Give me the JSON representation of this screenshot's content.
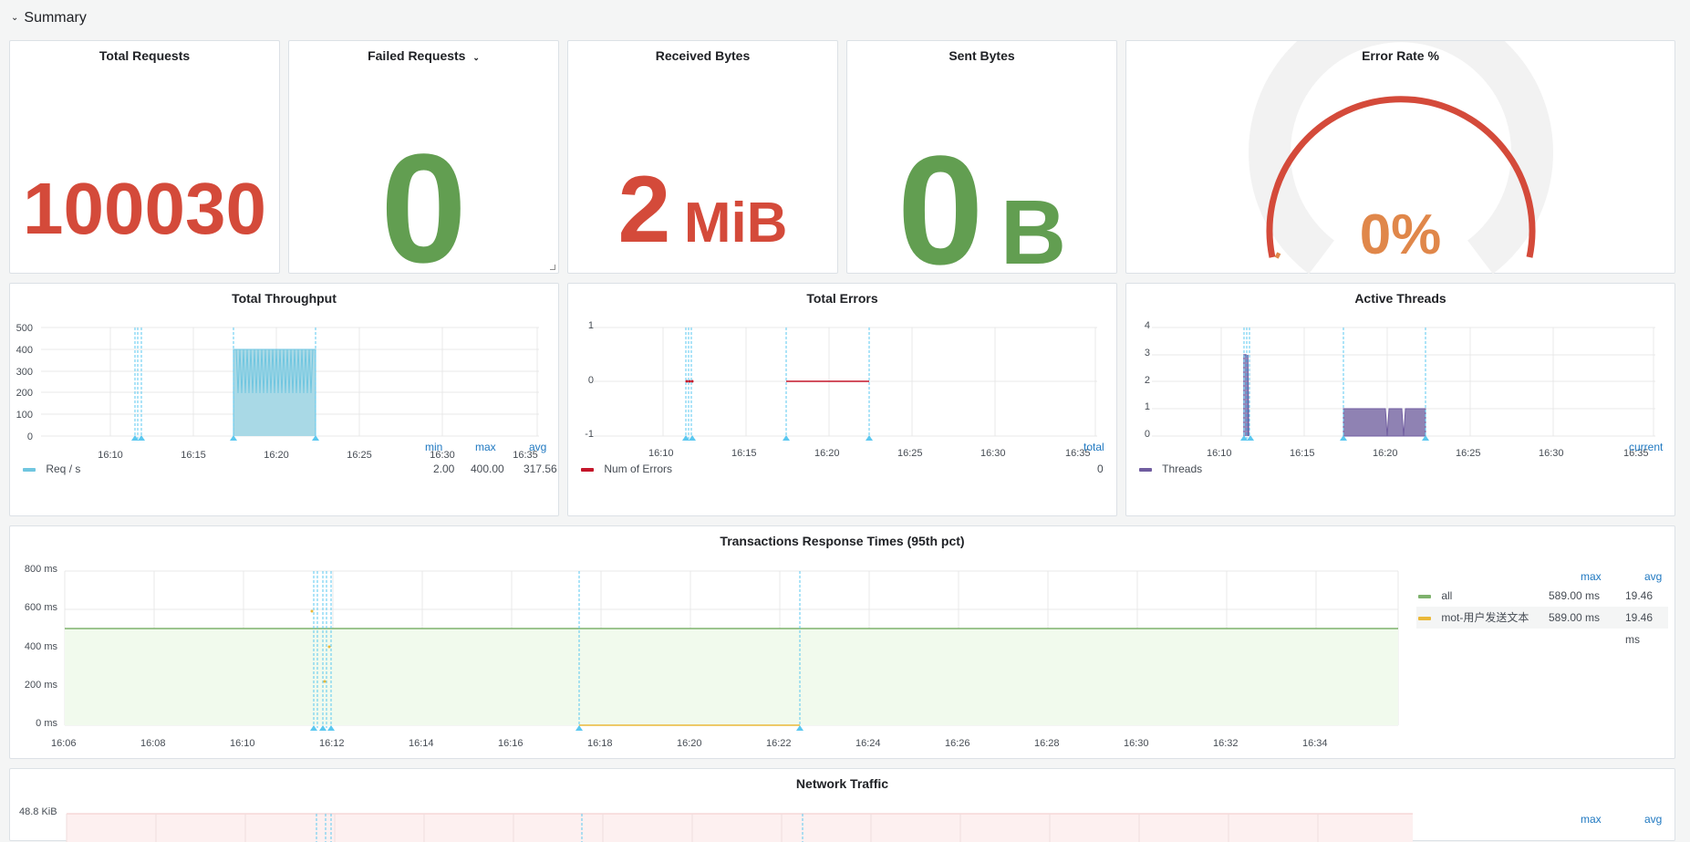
{
  "row": {
    "title": "Summary",
    "chevron_icon": "chevron-down-icon"
  },
  "stats": {
    "total_requests": {
      "title": "Total Requests",
      "value": "100030",
      "color": "#d44a3a"
    },
    "failed_requests": {
      "title": "Failed Requests",
      "value": "0",
      "color": "#629e51",
      "menu_icon": "chevron-down-icon"
    },
    "received_bytes": {
      "title": "Received Bytes",
      "value": "2",
      "unit": "MiB",
      "color": "#d44a3a"
    },
    "sent_bytes": {
      "title": "Sent Bytes",
      "value": "0",
      "unit": "B",
      "color": "#629e51"
    },
    "error_rate": {
      "title": "Error Rate %",
      "value": "0%",
      "gauge_fraction": 0,
      "color": "#e0874a",
      "arc_color": "#d44a3a"
    }
  },
  "throughput": {
    "title": "Total Throughput",
    "y_ticks": [
      "500",
      "400",
      "300",
      "200",
      "100",
      "0"
    ],
    "x_ticks": [
      "16:10",
      "16:15",
      "16:20",
      "16:25",
      "16:30",
      "16:35"
    ],
    "legend_headers": [
      "min",
      "max",
      "avg"
    ],
    "legend": [
      {
        "name": "Req / s",
        "min": "2.00",
        "max": "400.00",
        "avg": "317.56",
        "color": "#70c6e0"
      }
    ]
  },
  "errors": {
    "title": "Total Errors",
    "y_ticks": [
      "1",
      "0",
      "-1"
    ],
    "x_ticks": [
      "16:10",
      "16:15",
      "16:20",
      "16:25",
      "16:30",
      "16:35"
    ],
    "legend_headers": [
      "total"
    ],
    "legend": [
      {
        "name": "Num of Errors",
        "total": "0",
        "color": "#c4162a"
      }
    ]
  },
  "threads": {
    "title": "Active Threads",
    "y_ticks": [
      "4",
      "3",
      "2",
      "1",
      "0"
    ],
    "x_ticks": [
      "16:10",
      "16:15",
      "16:20",
      "16:25",
      "16:30",
      "16:35"
    ],
    "legend_headers": [
      "current"
    ],
    "legend": [
      {
        "name": "Threads",
        "color": "#705da0"
      }
    ]
  },
  "response_times": {
    "title": "Transactions Response Times (95th pct)",
    "y_ticks": [
      "800 ms",
      "600 ms",
      "400 ms",
      "200 ms",
      "0 ms"
    ],
    "x_ticks": [
      "16:06",
      "16:08",
      "16:10",
      "16:12",
      "16:14",
      "16:16",
      "16:18",
      "16:20",
      "16:22",
      "16:24",
      "16:26",
      "16:28",
      "16:30",
      "16:32",
      "16:34"
    ],
    "legend_headers": [
      "max",
      "avg"
    ],
    "legend": [
      {
        "name": "all",
        "max": "589.00 ms",
        "avg": "19.46 ms",
        "color": "#7eb26d"
      },
      {
        "name": "mot-用户发送文本",
        "max": "589.00 ms",
        "avg": "19.46 ms",
        "color": "#eab839"
      }
    ]
  },
  "network": {
    "title": "Network Traffic",
    "y_ticks": [
      "48.8 KiB"
    ],
    "legend_headers": [
      "max",
      "avg"
    ]
  }
}
